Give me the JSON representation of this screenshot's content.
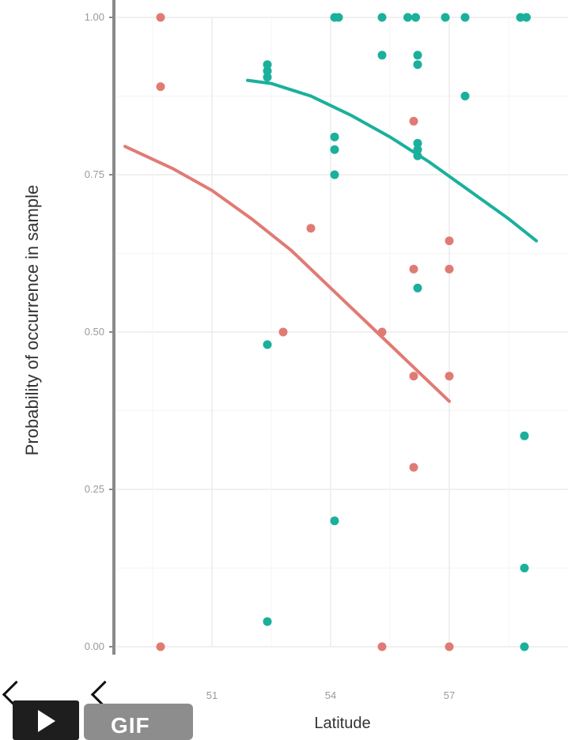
{
  "chart_data": {
    "type": "scatter",
    "xlabel": "Latitude",
    "ylabel": "Probability of occurrence in sample",
    "xlim": [
      48.6,
      60
    ],
    "ylim": [
      0,
      1
    ],
    "x_ticks": [
      51,
      54,
      57
    ],
    "x_tick_labels": [
      "51",
      "54",
      "57"
    ],
    "y_ticks": [
      0,
      0.25,
      0.5,
      0.75,
      1
    ],
    "y_tick_labels": [
      "0.00",
      "0.25",
      "0.50",
      "0.75",
      "1.00"
    ],
    "grid": true,
    "series": [
      {
        "color": "#e07b74",
        "points": [
          [
            49.7,
            1.0
          ],
          [
            49.7,
            0.89
          ],
          [
            49.7,
            0.0
          ],
          [
            52.8,
            0.5
          ],
          [
            53.5,
            0.665
          ],
          [
            55.3,
            0.5
          ],
          [
            55.3,
            0.0
          ],
          [
            56.1,
            0.835
          ],
          [
            56.1,
            0.6
          ],
          [
            56.1,
            0.43
          ],
          [
            56.1,
            0.285
          ],
          [
            57.0,
            0.645
          ],
          [
            57.0,
            0.6
          ],
          [
            57.0,
            0.43
          ],
          [
            57.0,
            0.0
          ]
        ],
        "fit": [
          [
            48.8,
            0.795
          ],
          [
            50.0,
            0.76
          ],
          [
            51.0,
            0.725
          ],
          [
            52.0,
            0.68
          ],
          [
            53.0,
            0.63
          ],
          [
            54.0,
            0.57
          ],
          [
            55.0,
            0.51
          ],
          [
            56.0,
            0.45
          ],
          [
            57.0,
            0.39
          ]
        ]
      },
      {
        "color": "#1ab09c",
        "points": [
          [
            52.4,
            0.925
          ],
          [
            52.4,
            0.915
          ],
          [
            52.4,
            0.905
          ],
          [
            52.4,
            0.48
          ],
          [
            52.4,
            0.04
          ],
          [
            54.1,
            1.0
          ],
          [
            54.2,
            1.0
          ],
          [
            54.1,
            0.81
          ],
          [
            54.1,
            0.79
          ],
          [
            54.1,
            0.75
          ],
          [
            54.1,
            0.2
          ],
          [
            55.3,
            1.0
          ],
          [
            55.3,
            0.94
          ],
          [
            55.95,
            1.0
          ],
          [
            56.15,
            1.0
          ],
          [
            56.2,
            0.94
          ],
          [
            56.2,
            0.925
          ],
          [
            56.2,
            0.8
          ],
          [
            56.2,
            0.79
          ],
          [
            56.2,
            0.78
          ],
          [
            56.2,
            0.57
          ],
          [
            56.9,
            1.0
          ],
          [
            57.4,
            1.0
          ],
          [
            57.4,
            0.875
          ],
          [
            58.8,
            1.0
          ],
          [
            58.95,
            1.0
          ],
          [
            58.9,
            0.335
          ],
          [
            58.9,
            0.125
          ],
          [
            58.9,
            0.0
          ]
        ],
        "fit": [
          [
            51.9,
            0.9
          ],
          [
            52.5,
            0.895
          ],
          [
            53.5,
            0.875
          ],
          [
            54.5,
            0.845
          ],
          [
            55.5,
            0.81
          ],
          [
            56.5,
            0.77
          ],
          [
            57.5,
            0.725
          ],
          [
            58.5,
            0.68
          ],
          [
            59.2,
            0.645
          ]
        ]
      }
    ]
  },
  "controls": {
    "play_icon": "play-icon",
    "gif_label": "GIF"
  }
}
